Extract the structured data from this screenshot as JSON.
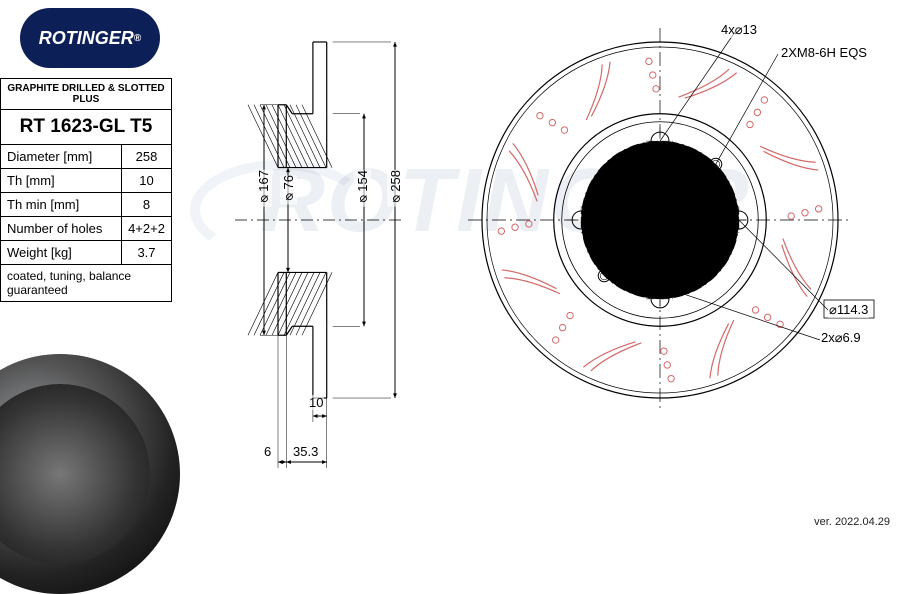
{
  "brand": "ROTINGER",
  "logo_bg": "#0d1f57",
  "heading": "GRAPHITE DRILLED & SLOTTED PLUS",
  "part_number": "RT 1623-GL T5",
  "specs": [
    {
      "label": "Diameter [mm]",
      "value": "258"
    },
    {
      "label": "Th [mm]",
      "value": "10"
    },
    {
      "label": "Th min [mm]",
      "value": "8"
    },
    {
      "label": "Number of holes",
      "value": "4+2+2"
    },
    {
      "label": "Weight [kg]",
      "value": "3.7"
    }
  ],
  "note": "coated, tuning, balance guaranteed",
  "version": "ver. 2022.04.29",
  "side_view": {
    "dims": {
      "d258": "⌀258",
      "d154": "⌀154",
      "d76": "⌀76",
      "d167": "⌀167",
      "t10": "10",
      "t6": "6",
      "t35_3": "35.3"
    },
    "stroke": "#000000",
    "line_width": 1
  },
  "front_view": {
    "outer_d": 258,
    "pcd_label": "⌀114.3",
    "pcd": 114.3,
    "callouts": {
      "holes_main": "4x⌀13",
      "threaded": "2XM8-6H  EQS",
      "small_holes": "2x⌀6.9"
    },
    "bolt_holes": {
      "count": 4,
      "d": 13
    },
    "threaded_holes": {
      "count": 2,
      "thread": "M8-6H"
    },
    "small_holes": {
      "count": 2,
      "d": 6.9
    },
    "colors": {
      "outline": "#000000",
      "centerline": "#000000",
      "slot_stroke": "#d46a6a",
      "drill_stroke": "#d46a6a",
      "background": "#ffffff"
    },
    "slots": 8,
    "drills_per_slot": 3,
    "line_width": 1
  }
}
